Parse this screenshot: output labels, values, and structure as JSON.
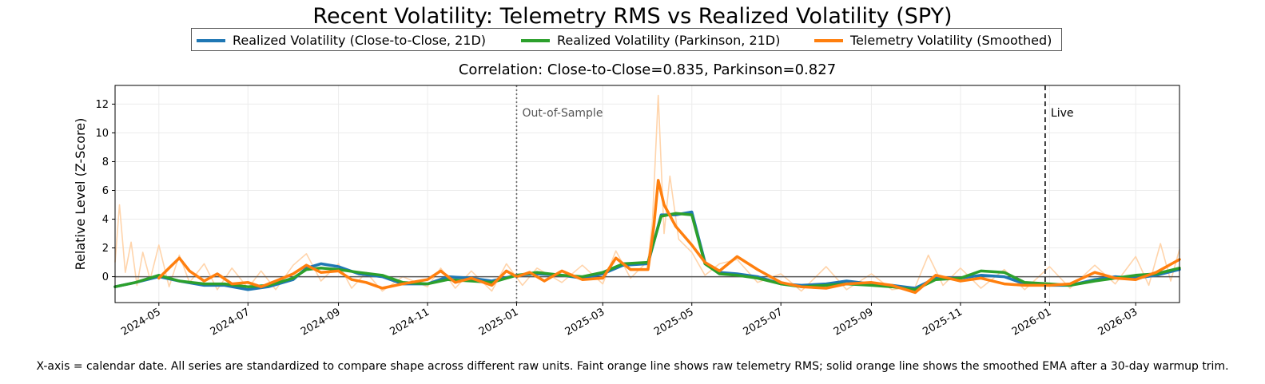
{
  "chart_data": {
    "type": "line",
    "title": "Recent Volatility: Telemetry RMS vs Realized Volatility (SPY)",
    "subtitle": "Correlation: Close-to-Close=0.835, Parkinson=0.827",
    "ylabel": "Relative Level (Z-Score)",
    "xlabel": "",
    "xlim": [
      "2024-04-01",
      "2026-03-31"
    ],
    "ylim": [
      -1.8,
      13.3
    ],
    "yticks": [
      0,
      2,
      4,
      6,
      8,
      10,
      12
    ],
    "xticks": [
      "2024-05",
      "2024-07",
      "2024-09",
      "2024-11",
      "2025-01",
      "2025-03",
      "2025-05",
      "2025-07",
      "2025-09",
      "2025-11",
      "2026-01",
      "2026-03"
    ],
    "grid": true,
    "legend_position": "top-center, outside",
    "annotations": [
      {
        "label": "Out-of-Sample",
        "date": "2025-01-01",
        "style": "dotted"
      },
      {
        "label": "Live",
        "date": "2025-12-29",
        "style": "dashed"
      }
    ],
    "series": [
      {
        "name": "Realized Volatility (Close-to-Close, 21D)",
        "color": "#1f77b4",
        "points": [
          [
            "2024-04-01",
            -0.7
          ],
          [
            "2024-04-15",
            -0.4
          ],
          [
            "2024-05-01",
            0.0
          ],
          [
            "2024-05-15",
            -0.3
          ],
          [
            "2024-06-01",
            -0.6
          ],
          [
            "2024-06-15",
            -0.6
          ],
          [
            "2024-07-01",
            -0.9
          ],
          [
            "2024-07-15",
            -0.7
          ],
          [
            "2024-08-01",
            -0.2
          ],
          [
            "2024-08-10",
            0.6
          ],
          [
            "2024-08-20",
            0.9
          ],
          [
            "2024-09-01",
            0.7
          ],
          [
            "2024-09-15",
            0.2
          ],
          [
            "2024-10-01",
            0.0
          ],
          [
            "2024-10-15",
            -0.5
          ],
          [
            "2024-11-01",
            -0.5
          ],
          [
            "2024-11-15",
            0.0
          ],
          [
            "2024-12-01",
            -0.1
          ],
          [
            "2024-12-15",
            -0.3
          ],
          [
            "2025-01-01",
            0.1
          ],
          [
            "2025-01-15",
            0.2
          ],
          [
            "2025-02-01",
            0.1
          ],
          [
            "2025-02-15",
            -0.1
          ],
          [
            "2025-03-01",
            0.2
          ],
          [
            "2025-03-15",
            0.8
          ],
          [
            "2025-04-01",
            0.9
          ],
          [
            "2025-04-10",
            4.3
          ],
          [
            "2025-04-20",
            4.3
          ],
          [
            "2025-05-01",
            4.5
          ],
          [
            "2025-05-10",
            1.0
          ],
          [
            "2025-05-20",
            0.3
          ],
          [
            "2025-06-01",
            0.2
          ],
          [
            "2025-06-15",
            0.0
          ],
          [
            "2025-07-01",
            -0.5
          ],
          [
            "2025-07-15",
            -0.6
          ],
          [
            "2025-08-01",
            -0.5
          ],
          [
            "2025-08-15",
            -0.3
          ],
          [
            "2025-09-01",
            -0.5
          ],
          [
            "2025-09-15",
            -0.6
          ],
          [
            "2025-10-01",
            -0.8
          ],
          [
            "2025-10-15",
            -0.1
          ],
          [
            "2025-11-01",
            -0.1
          ],
          [
            "2025-11-15",
            0.1
          ],
          [
            "2025-12-01",
            0.0
          ],
          [
            "2025-12-15",
            -0.5
          ],
          [
            "2026-01-01",
            -0.6
          ],
          [
            "2026-01-15",
            -0.6
          ],
          [
            "2026-02-01",
            -0.2
          ],
          [
            "2026-02-15",
            0.0
          ],
          [
            "2026-03-01",
            -0.1
          ],
          [
            "2026-03-15",
            0.1
          ],
          [
            "2026-03-31",
            0.5
          ]
        ]
      },
      {
        "name": "Realized Volatility (Parkinson, 21D)",
        "color": "#2ca02c",
        "points": [
          [
            "2024-04-01",
            -0.7
          ],
          [
            "2024-04-15",
            -0.4
          ],
          [
            "2024-05-01",
            0.1
          ],
          [
            "2024-05-15",
            -0.3
          ],
          [
            "2024-06-01",
            -0.5
          ],
          [
            "2024-06-15",
            -0.5
          ],
          [
            "2024-07-01",
            -0.7
          ],
          [
            "2024-07-15",
            -0.6
          ],
          [
            "2024-08-01",
            -0.1
          ],
          [
            "2024-08-10",
            0.5
          ],
          [
            "2024-08-20",
            0.6
          ],
          [
            "2024-09-01",
            0.5
          ],
          [
            "2024-09-15",
            0.3
          ],
          [
            "2024-10-01",
            0.1
          ],
          [
            "2024-10-15",
            -0.4
          ],
          [
            "2024-11-01",
            -0.5
          ],
          [
            "2024-11-15",
            -0.2
          ],
          [
            "2024-12-01",
            -0.3
          ],
          [
            "2024-12-15",
            -0.4
          ],
          [
            "2025-01-01",
            0.1
          ],
          [
            "2025-01-15",
            0.3
          ],
          [
            "2025-02-01",
            0.1
          ],
          [
            "2025-02-15",
            0.0
          ],
          [
            "2025-03-01",
            0.3
          ],
          [
            "2025-03-15",
            0.9
          ],
          [
            "2025-04-01",
            1.0
          ],
          [
            "2025-04-10",
            4.2
          ],
          [
            "2025-04-20",
            4.4
          ],
          [
            "2025-05-01",
            4.3
          ],
          [
            "2025-05-10",
            0.9
          ],
          [
            "2025-05-20",
            0.2
          ],
          [
            "2025-06-01",
            0.1
          ],
          [
            "2025-06-15",
            -0.1
          ],
          [
            "2025-07-01",
            -0.5
          ],
          [
            "2025-07-15",
            -0.7
          ],
          [
            "2025-08-01",
            -0.6
          ],
          [
            "2025-08-15",
            -0.5
          ],
          [
            "2025-09-01",
            -0.6
          ],
          [
            "2025-09-15",
            -0.7
          ],
          [
            "2025-10-01",
            -0.9
          ],
          [
            "2025-10-15",
            -0.2
          ],
          [
            "2025-11-01",
            -0.1
          ],
          [
            "2025-11-15",
            0.4
          ],
          [
            "2025-12-01",
            0.3
          ],
          [
            "2025-12-15",
            -0.4
          ],
          [
            "2026-01-01",
            -0.5
          ],
          [
            "2026-01-15",
            -0.6
          ],
          [
            "2026-02-01",
            -0.3
          ],
          [
            "2026-02-15",
            -0.1
          ],
          [
            "2026-03-01",
            0.1
          ],
          [
            "2026-03-15",
            0.2
          ],
          [
            "2026-03-31",
            0.6
          ]
        ]
      },
      {
        "name": "Telemetry Volatility (Smoothed)",
        "color": "#ff7f0e",
        "points": [
          [
            "2024-05-01",
            -0.1
          ],
          [
            "2024-05-08",
            0.6
          ],
          [
            "2024-05-15",
            1.3
          ],
          [
            "2024-05-22",
            0.4
          ],
          [
            "2024-06-01",
            -0.3
          ],
          [
            "2024-06-10",
            0.2
          ],
          [
            "2024-06-20",
            -0.5
          ],
          [
            "2024-07-01",
            -0.4
          ],
          [
            "2024-07-10",
            -0.7
          ],
          [
            "2024-07-20",
            -0.3
          ],
          [
            "2024-08-01",
            0.2
          ],
          [
            "2024-08-10",
            0.8
          ],
          [
            "2024-08-20",
            0.3
          ],
          [
            "2024-09-01",
            0.4
          ],
          [
            "2024-09-10",
            -0.2
          ],
          [
            "2024-09-20",
            -0.4
          ],
          [
            "2024-10-01",
            -0.8
          ],
          [
            "2024-10-15",
            -0.5
          ],
          [
            "2024-11-01",
            -0.2
          ],
          [
            "2024-11-10",
            0.4
          ],
          [
            "2024-11-20",
            -0.4
          ],
          [
            "2024-12-01",
            -0.1
          ],
          [
            "2024-12-15",
            -0.6
          ],
          [
            "2024-12-25",
            0.4
          ],
          [
            "2025-01-01",
            0.0
          ],
          [
            "2025-01-10",
            0.3
          ],
          [
            "2025-01-20",
            -0.3
          ],
          [
            "2025-02-01",
            0.4
          ],
          [
            "2025-02-15",
            -0.2
          ],
          [
            "2025-03-01",
            -0.1
          ],
          [
            "2025-03-10",
            1.3
          ],
          [
            "2025-03-20",
            0.5
          ],
          [
            "2025-04-01",
            0.5
          ],
          [
            "2025-04-05",
            3.5
          ],
          [
            "2025-04-08",
            6.7
          ],
          [
            "2025-04-12",
            5.0
          ],
          [
            "2025-04-20",
            3.5
          ],
          [
            "2025-05-01",
            2.2
          ],
          [
            "2025-05-10",
            1.0
          ],
          [
            "2025-05-20",
            0.4
          ],
          [
            "2025-06-01",
            1.4
          ],
          [
            "2025-06-15",
            0.5
          ],
          [
            "2025-07-01",
            -0.4
          ],
          [
            "2025-07-15",
            -0.7
          ],
          [
            "2025-08-01",
            -0.8
          ],
          [
            "2025-08-15",
            -0.5
          ],
          [
            "2025-09-01",
            -0.4
          ],
          [
            "2025-09-15",
            -0.6
          ],
          [
            "2025-10-01",
            -1.1
          ],
          [
            "2025-10-15",
            0.1
          ],
          [
            "2025-11-01",
            -0.3
          ],
          [
            "2025-11-15",
            -0.1
          ],
          [
            "2025-12-01",
            -0.5
          ],
          [
            "2025-12-15",
            -0.6
          ],
          [
            "2026-01-01",
            -0.6
          ],
          [
            "2026-01-15",
            -0.5
          ],
          [
            "2026-02-01",
            0.3
          ],
          [
            "2026-02-15",
            -0.1
          ],
          [
            "2026-03-01",
            -0.2
          ],
          [
            "2026-03-15",
            0.3
          ],
          [
            "2026-03-31",
            1.2
          ]
        ]
      }
    ],
    "raw_series": {
      "label": "raw telemetry RMS (faint orange)",
      "color": "#ffd4ab",
      "points": [
        [
          "2024-04-01",
          1.0
        ],
        [
          "2024-04-04",
          5.0
        ],
        [
          "2024-04-08",
          0.3
        ],
        [
          "2024-04-12",
          2.4
        ],
        [
          "2024-04-16",
          -0.6
        ],
        [
          "2024-04-20",
          1.7
        ],
        [
          "2024-04-25",
          -0.2
        ],
        [
          "2024-05-01",
          2.2
        ],
        [
          "2024-05-08",
          -0.7
        ],
        [
          "2024-05-15",
          1.5
        ],
        [
          "2024-05-22",
          -0.4
        ],
        [
          "2024-06-01",
          0.9
        ],
        [
          "2024-06-10",
          -0.9
        ],
        [
          "2024-06-20",
          0.6
        ],
        [
          "2024-07-01",
          -0.8
        ],
        [
          "2024-07-10",
          0.4
        ],
        [
          "2024-07-20",
          -0.9
        ],
        [
          "2024-08-01",
          0.8
        ],
        [
          "2024-08-10",
          1.6
        ],
        [
          "2024-08-20",
          -0.3
        ],
        [
          "2024-09-01",
          0.9
        ],
        [
          "2024-09-10",
          -0.8
        ],
        [
          "2024-09-20",
          0.3
        ],
        [
          "2024-10-01",
          -1.0
        ],
        [
          "2024-10-15",
          0.0
        ],
        [
          "2024-11-01",
          -0.7
        ],
        [
          "2024-11-10",
          0.6
        ],
        [
          "2024-11-20",
          -0.8
        ],
        [
          "2024-12-01",
          0.4
        ],
        [
          "2024-12-15",
          -1.0
        ],
        [
          "2024-12-25",
          0.9
        ],
        [
          "2025-01-05",
          -0.6
        ],
        [
          "2025-01-15",
          0.6
        ],
        [
          "2025-02-01",
          -0.4
        ],
        [
          "2025-02-15",
          0.8
        ],
        [
          "2025-03-01",
          -0.5
        ],
        [
          "2025-03-10",
          1.8
        ],
        [
          "2025-03-20",
          -0.1
        ],
        [
          "2025-04-01",
          1.1
        ],
        [
          "2025-04-04",
          3.8
        ],
        [
          "2025-04-08",
          12.6
        ],
        [
          "2025-04-12",
          3.0
        ],
        [
          "2025-04-16",
          7.0
        ],
        [
          "2025-04-22",
          2.6
        ],
        [
          "2025-05-01",
          1.7
        ],
        [
          "2025-05-10",
          0.1
        ],
        [
          "2025-05-20",
          0.9
        ],
        [
          "2025-06-01",
          1.2
        ],
        [
          "2025-06-15",
          -0.4
        ],
        [
          "2025-07-01",
          0.2
        ],
        [
          "2025-07-15",
          -1.0
        ],
        [
          "2025-08-01",
          0.7
        ],
        [
          "2025-08-15",
          -0.9
        ],
        [
          "2025-09-01",
          0.2
        ],
        [
          "2025-09-15",
          -0.9
        ],
        [
          "2025-10-01",
          -0.7
        ],
        [
          "2025-10-10",
          1.5
        ],
        [
          "2025-10-20",
          -0.6
        ],
        [
          "2025-11-01",
          0.6
        ],
        [
          "2025-11-15",
          -0.8
        ],
        [
          "2025-12-01",
          0.5
        ],
        [
          "2025-12-15",
          -0.9
        ],
        [
          "2026-01-01",
          0.7
        ],
        [
          "2026-01-15",
          -0.8
        ],
        [
          "2026-02-01",
          0.8
        ],
        [
          "2026-02-15",
          -0.5
        ],
        [
          "2026-03-01",
          1.4
        ],
        [
          "2026-03-10",
          -0.6
        ],
        [
          "2026-03-18",
          2.3
        ],
        [
          "2026-03-25",
          -0.3
        ],
        [
          "2026-03-31",
          1.9
        ]
      ]
    }
  },
  "legend": {
    "items": [
      {
        "label": "Realized Volatility (Close-to-Close, 21D)",
        "color": "#1f77b4"
      },
      {
        "label": "Realized Volatility (Parkinson, 21D)",
        "color": "#2ca02c"
      },
      {
        "label": "Telemetry Volatility (Smoothed)",
        "color": "#ff7f0e"
      }
    ]
  },
  "footnote": "X-axis = calendar date. All series are standardized to compare shape across different raw units. Faint orange line shows raw telemetry RMS; solid orange line shows the smoothed EMA after a 30-day warmup trim."
}
